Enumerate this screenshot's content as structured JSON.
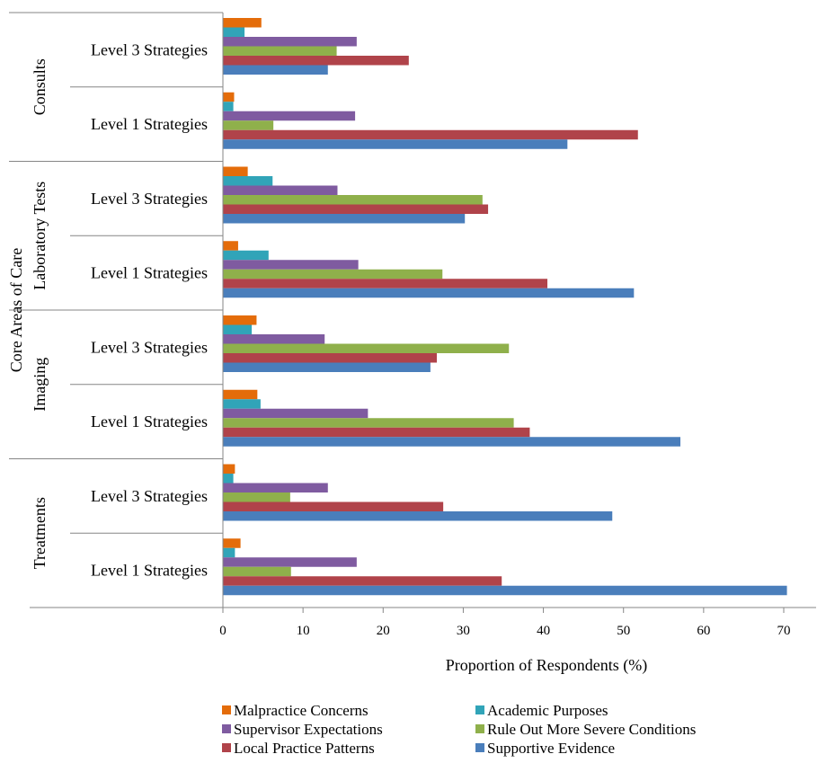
{
  "chart_data": {
    "type": "bar",
    "orientation": "horizontal",
    "title": "",
    "xlabel": "Proportion of Respondents (%)",
    "ylabel": "Core Areas of Care",
    "xlim": [
      0,
      70
    ],
    "xticks": [
      0,
      10,
      20,
      30,
      40,
      50,
      60,
      70
    ],
    "grid": false,
    "legend_position": "bottom",
    "groups": [
      "Consults",
      "Laboratory Tests",
      "Imaging",
      "Treatments"
    ],
    "categories": [
      {
        "group": "Consults",
        "label": "Level 3 Strategies"
      },
      {
        "group": "Consults",
        "label": "Level 1 Strategies"
      },
      {
        "group": "Laboratory Tests",
        "label": "Level 3 Strategies"
      },
      {
        "group": "Laboratory Tests",
        "label": "Level 1 Strategies"
      },
      {
        "group": "Imaging",
        "label": "Level 3 Strategies"
      },
      {
        "group": "Imaging",
        "label": "Level 1 Strategies"
      },
      {
        "group": "Treatments",
        "label": "Level 3 Strategies"
      },
      {
        "group": "Treatments",
        "label": "Level 1 Strategies"
      }
    ],
    "series": [
      {
        "name": "Malpractice Concerns",
        "color": "#E46C0A",
        "values": [
          4.8,
          1.4,
          3.1,
          1.9,
          4.2,
          4.3,
          1.5,
          2.2
        ]
      },
      {
        "name": "Academic Purposes",
        "color": "#31A4B8",
        "values": [
          2.7,
          1.3,
          6.2,
          5.7,
          3.6,
          4.7,
          1.3,
          1.5
        ]
      },
      {
        "name": "Supervisor Expectations",
        "color": "#7F5BA0",
        "values": [
          16.7,
          16.5,
          14.3,
          16.9,
          12.7,
          18.1,
          13.1,
          16.7
        ]
      },
      {
        "name": "Rule Out More Severe Conditions",
        "color": "#8FB04B",
        "values": [
          14.2,
          6.3,
          32.4,
          27.4,
          35.7,
          36.3,
          8.4,
          8.5
        ]
      },
      {
        "name": "Local Practice Patterns",
        "color": "#B0434A",
        "values": [
          23.2,
          51.8,
          33.1,
          40.5,
          26.7,
          38.3,
          27.5,
          34.8
        ]
      },
      {
        "name": "Supportive Evidence",
        "color": "#4A7EBB",
        "values": [
          13.1,
          43.0,
          30.2,
          51.3,
          25.9,
          57.1,
          48.6,
          70.4
        ]
      }
    ]
  }
}
